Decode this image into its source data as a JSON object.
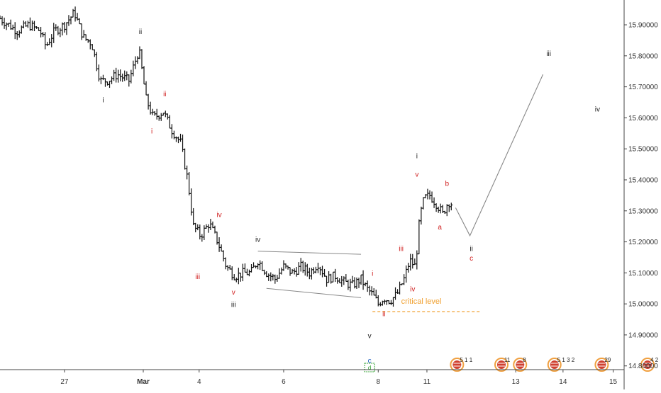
{
  "chart_data": {
    "type": "ohlc",
    "title": "",
    "xlabel": "",
    "ylabel": "",
    "ylim": [
      14.74,
      15.98
    ],
    "grid": false,
    "y_ticks": [
      "15.90000",
      "15.80000",
      "15.70000",
      "15.60000",
      "15.50000",
      "15.40000",
      "15.30000",
      "15.20000",
      "15.10000",
      "15.00000",
      "14.90000",
      "14.80000"
    ],
    "x_ticks": [
      {
        "label": "27",
        "pos": 0.45
      },
      {
        "label": "Mar",
        "pos": 1.0
      },
      {
        "label": "4",
        "pos": 1.39
      },
      {
        "label": "6",
        "pos": 1.98
      },
      {
        "label": "8",
        "pos": 2.64
      },
      {
        "label": "11",
        "pos": 2.98
      },
      {
        "label": "13",
        "pos": 3.6
      },
      {
        "label": "14",
        "pos": 3.93
      },
      {
        "label": "15",
        "pos": 4.28
      }
    ],
    "price_path": [
      [
        0.0,
        15.92
      ],
      [
        0.06,
        15.9
      ],
      [
        0.12,
        15.88
      ],
      [
        0.2,
        15.9
      ],
      [
        0.28,
        15.88
      ],
      [
        0.32,
        15.83
      ],
      [
        0.38,
        15.88
      ],
      [
        0.45,
        15.9
      ],
      [
        0.52,
        15.94
      ],
      [
        0.58,
        15.86
      ],
      [
        0.64,
        15.84
      ],
      [
        0.7,
        15.72
      ],
      [
        0.75,
        15.72
      ],
      [
        0.82,
        15.74
      ],
      [
        0.9,
        15.72
      ],
      [
        0.97,
        15.82
      ],
      [
        1.02,
        15.66
      ],
      [
        1.07,
        15.6
      ],
      [
        1.14,
        15.62
      ],
      [
        1.2,
        15.56
      ],
      [
        1.26,
        15.52
      ],
      [
        1.31,
        15.4
      ],
      [
        1.35,
        15.25
      ],
      [
        1.4,
        15.22
      ],
      [
        1.46,
        15.26
      ],
      [
        1.52,
        15.2
      ],
      [
        1.58,
        15.12
      ],
      [
        1.64,
        15.09
      ],
      [
        1.7,
        15.1
      ],
      [
        1.75,
        15.1
      ],
      [
        1.8,
        15.14
      ],
      [
        1.86,
        15.1
      ],
      [
        1.92,
        15.08
      ],
      [
        1.98,
        15.12
      ],
      [
        2.04,
        15.1
      ],
      [
        2.1,
        15.12
      ],
      [
        2.16,
        15.1
      ],
      [
        2.22,
        15.13
      ],
      [
        2.28,
        15.08
      ],
      [
        2.34,
        15.09
      ],
      [
        2.4,
        15.07
      ],
      [
        2.46,
        15.06
      ],
      [
        2.52,
        15.08
      ],
      [
        2.56,
        15.05
      ],
      [
        2.6,
        15.03
      ],
      [
        2.64,
        15.0
      ],
      [
        2.68,
        15.02
      ],
      [
        2.72,
        15.01
      ],
      [
        2.77,
        15.03
      ],
      [
        2.82,
        15.08
      ],
      [
        2.86,
        15.14
      ],
      [
        2.9,
        15.12
      ],
      [
        2.93,
        15.28
      ],
      [
        2.96,
        15.34
      ],
      [
        3.0,
        15.35
      ],
      [
        3.05,
        15.32
      ],
      [
        3.09,
        15.29
      ],
      [
        3.13,
        15.33
      ],
      [
        3.16,
        15.32
      ]
    ],
    "projection": [
      [
        3.18,
        15.31
      ],
      [
        3.28,
        15.22
      ],
      [
        3.79,
        15.74
      ]
    ],
    "triangle_upper": [
      [
        1.8,
        15.17
      ],
      [
        2.52,
        15.16
      ]
    ],
    "triangle_lower": [
      [
        1.86,
        15.05
      ],
      [
        2.52,
        15.02
      ]
    ],
    "critical_level": {
      "label": "critical level",
      "value": 14.975,
      "x_start": 2.6,
      "x_end": 3.35
    },
    "wave_labels": [
      {
        "text": "ii",
        "x": 0.98,
        "y": 15.87,
        "color": "#222222"
      },
      {
        "text": "i",
        "x": 0.72,
        "y": 15.65,
        "color": "#222222"
      },
      {
        "text": "ii",
        "x": 1.15,
        "y": 15.67,
        "color": "#d02020"
      },
      {
        "text": "i",
        "x": 1.06,
        "y": 15.55,
        "color": "#d02020"
      },
      {
        "text": "iv",
        "x": 1.53,
        "y": 15.28,
        "color": "#d02020"
      },
      {
        "text": "iii",
        "x": 1.38,
        "y": 15.08,
        "color": "#d02020"
      },
      {
        "text": "iv",
        "x": 1.8,
        "y": 15.2,
        "color": "#222222"
      },
      {
        "text": "v",
        "x": 1.63,
        "y": 15.03,
        "color": "#d02020"
      },
      {
        "text": "iii",
        "x": 1.63,
        "y": 14.99,
        "color": "#222222"
      },
      {
        "text": "i",
        "x": 2.6,
        "y": 15.09,
        "color": "#d02020"
      },
      {
        "text": "ii",
        "x": 2.68,
        "y": 14.96,
        "color": "#d02020"
      },
      {
        "text": "v",
        "x": 2.58,
        "y": 14.89,
        "color": "#222222"
      },
      {
        "text": "c",
        "x": 2.58,
        "y": 14.81,
        "color": "#2060c0"
      },
      {
        "text": "iii",
        "x": 2.8,
        "y": 15.17,
        "color": "#d02020"
      },
      {
        "text": "iv",
        "x": 2.88,
        "y": 15.04,
        "color": "#d02020"
      },
      {
        "text": "i",
        "x": 2.91,
        "y": 15.47,
        "color": "#222222"
      },
      {
        "text": "v",
        "x": 2.91,
        "y": 15.41,
        "color": "#d02020"
      },
      {
        "text": "b",
        "x": 3.12,
        "y": 15.38,
        "color": "#d02020"
      },
      {
        "text": "a",
        "x": 3.07,
        "y": 15.24,
        "color": "#d02020"
      },
      {
        "text": "ii",
        "x": 3.29,
        "y": 15.17,
        "color": "#222222"
      },
      {
        "text": "c",
        "x": 3.29,
        "y": 15.14,
        "color": "#d02020"
      },
      {
        "text": "iii",
        "x": 3.83,
        "y": 15.8,
        "color": "#222222"
      },
      {
        "text": "iv",
        "x": 4.17,
        "y": 15.62,
        "color": "#222222"
      }
    ],
    "events": [
      {
        "x": 3.19,
        "text": "5 1 1"
      },
      {
        "x": 3.5,
        "text": "11"
      },
      {
        "x": 3.63,
        "text": "8"
      },
      {
        "x": 3.87,
        "text": "5 1 3 2"
      },
      {
        "x": 4.2,
        "text": "29"
      },
      {
        "x": 4.52,
        "text": "4 2"
      }
    ],
    "marker": {
      "x": 2.58,
      "text": "d"
    }
  },
  "colors": {
    "bars": "#111111",
    "wave_black": "#222222",
    "wave_red": "#d02020",
    "wave_blue": "#2060c0",
    "critical": "#f0a030",
    "projection": "#888888",
    "triangle": "#888888",
    "event_red": "#d04030",
    "event_orange": "#f0a040",
    "marker_green": "#30a030"
  }
}
